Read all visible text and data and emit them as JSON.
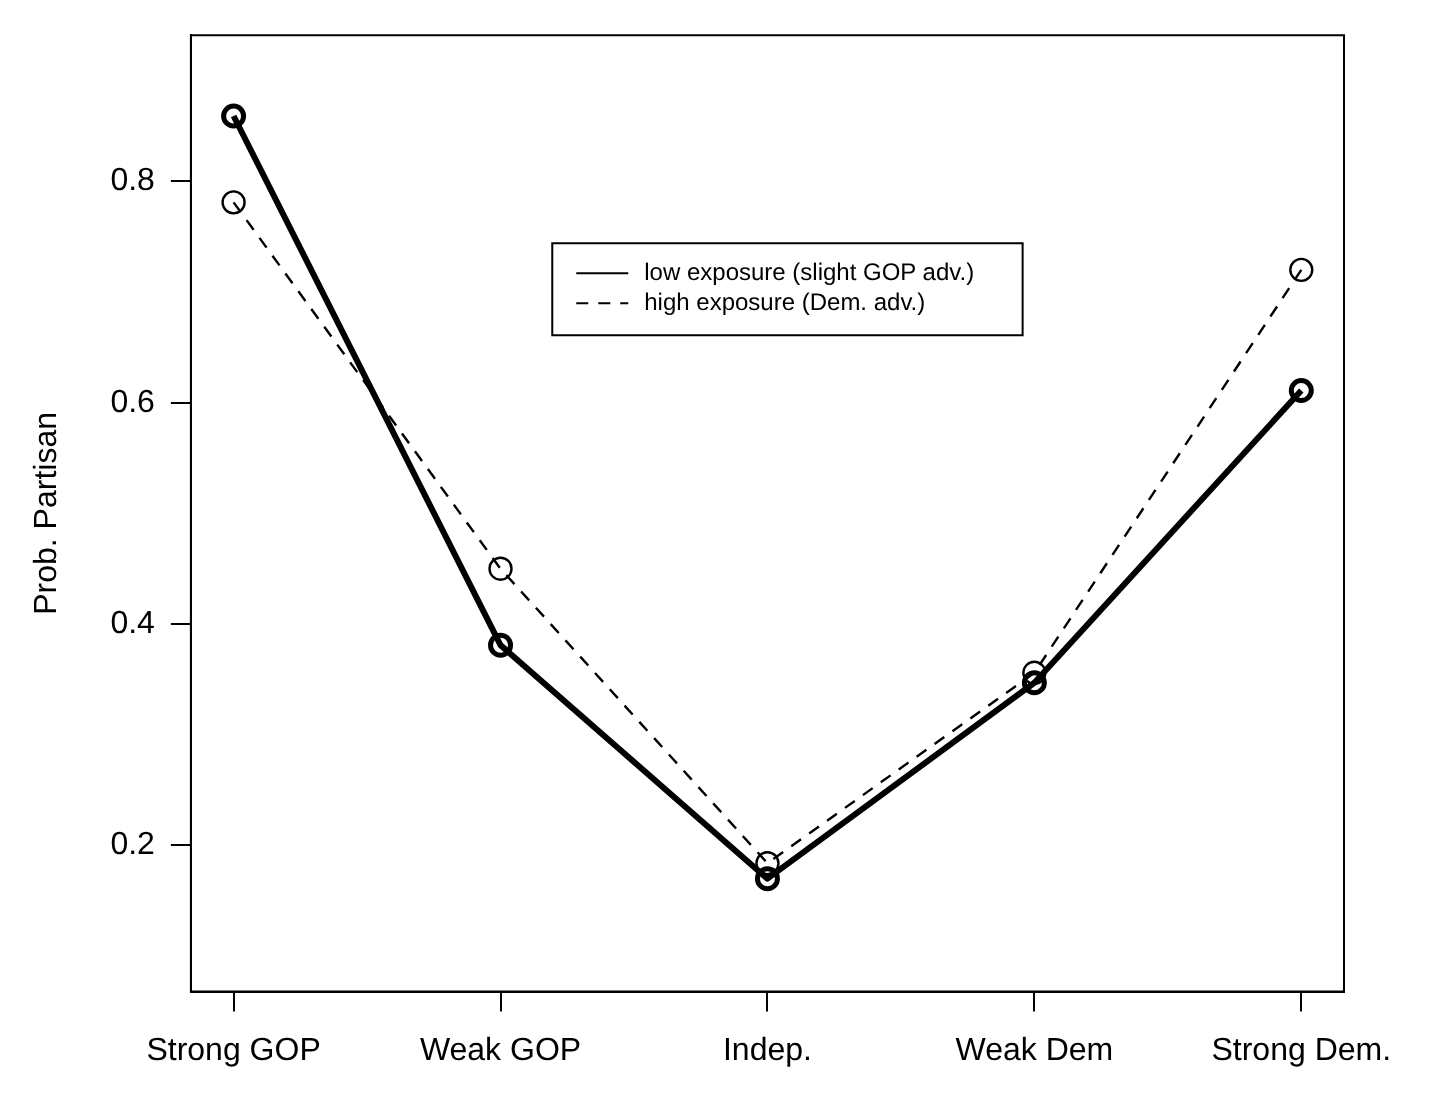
{
  "chart_data": {
    "type": "line",
    "ylabel": "Prob. Partisan",
    "categories": [
      "Strong GOP",
      "Weak GOP",
      "Indep.",
      "Weak Dem",
      "Strong Dem."
    ],
    "series": [
      {
        "name": "low exposure (slight GOP adv.)",
        "color": "#000000",
        "line_style": "solid",
        "values": [
          0.859,
          0.381,
          0.17,
          0.347,
          0.611
        ]
      },
      {
        "name": "high exposure (Dem. adv.)",
        "color": "#000000",
        "line_style": "dashed",
        "values": [
          0.781,
          0.45,
          0.184,
          0.356,
          0.72
        ]
      }
    ],
    "ylim": [
      0.068,
      0.932
    ],
    "yticks": [
      0.2,
      0.4,
      0.6,
      0.8
    ],
    "grid": false,
    "legend": "top",
    "marker": "circle"
  }
}
